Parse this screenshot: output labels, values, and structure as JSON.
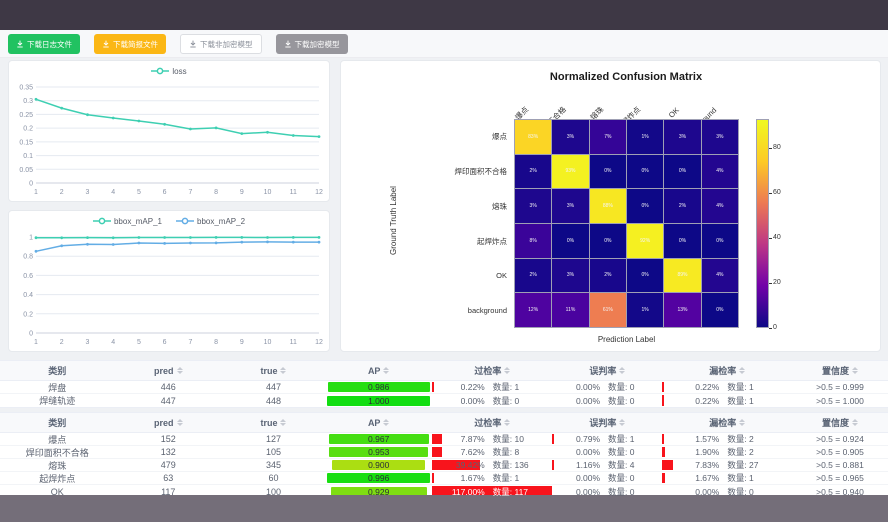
{
  "toolbar": {
    "buttons": [
      {
        "label": "下载日志文件",
        "style": "green"
      },
      {
        "label": "下载简报文件",
        "style": "orange"
      },
      {
        "label": "下载非加密模型",
        "style": "plain"
      },
      {
        "label": "下载加密模型",
        "style": "gray"
      }
    ]
  },
  "palette": {
    "teal": "#3ecfb2",
    "blue": "#63ade5",
    "red_bar": "#f8141c",
    "green_button": "#21c261",
    "orange_button": "#fbb715",
    "gray_button": "#97969c"
  },
  "chart_data": [
    {
      "type": "line",
      "x": [
        1,
        2,
        3,
        4,
        5,
        6,
        7,
        8,
        9,
        10,
        11,
        12
      ],
      "series": [
        {
          "name": "loss",
          "color": "#3ecfb2",
          "values": [
            0.305,
            0.273,
            0.249,
            0.237,
            0.226,
            0.214,
            0.197,
            0.201,
            0.18,
            0.185,
            0.173,
            0.169
          ]
        }
      ],
      "ylim": [
        0,
        0.35
      ],
      "yticks": [
        0,
        0.05,
        0.1,
        0.15,
        0.2,
        0.25,
        0.3,
        0.35
      ],
      "legend_position": "top",
      "grid": true
    },
    {
      "type": "line",
      "x": [
        1,
        2,
        3,
        4,
        5,
        6,
        7,
        8,
        9,
        10,
        11,
        12
      ],
      "series": [
        {
          "name": "bbox_mAP_1",
          "color": "#3ecfb2",
          "values": [
            0.993,
            0.992,
            0.994,
            0.992,
            0.995,
            0.995,
            0.995,
            0.996,
            0.996,
            0.995,
            0.996,
            0.996
          ]
        },
        {
          "name": "bbox_mAP_2",
          "color": "#63ade5",
          "values": [
            0.851,
            0.908,
            0.924,
            0.922,
            0.938,
            0.933,
            0.938,
            0.939,
            0.947,
            0.949,
            0.947,
            0.947
          ]
        }
      ],
      "ylim": [
        0,
        1
      ],
      "yticks": [
        0,
        0.2,
        0.4,
        0.6,
        0.8,
        1
      ],
      "legend_position": "top",
      "grid": true
    },
    {
      "type": "heatmap",
      "title": "Normalized Confusion Matrix",
      "xlabel": "Prediction Label",
      "ylabel": "Ground Truth Label",
      "labels": [
        "爆点",
        "焊印面积不合格",
        "熔珠",
        "起焊炸点",
        "OK",
        "background"
      ],
      "values_pct": [
        [
          83,
          3,
          7,
          1,
          3,
          3
        ],
        [
          2,
          93,
          0,
          0,
          0,
          4
        ],
        [
          3,
          3,
          88,
          0,
          2,
          4
        ],
        [
          8,
          0,
          0,
          92,
          0,
          0
        ],
        [
          2,
          3,
          2,
          0,
          89,
          4
        ],
        [
          12,
          11,
          61,
          1,
          13,
          0
        ]
      ],
      "colorbar_ticks": [
        0,
        20,
        40,
        60,
        80
      ],
      "vmax": 93,
      "colormap": "plasma"
    }
  ],
  "tables_meta": {
    "count_label": "数量:"
  },
  "tables": [
    {
      "headers": [
        "类别",
        "pred",
        "true",
        "AP",
        "过检率",
        "误判率",
        "漏检率",
        "置信度"
      ],
      "rows": [
        {
          "label": "焊盘",
          "pred": 446,
          "true": 447,
          "ap": 0.986,
          "over": {
            "pct": 0.22,
            "count": 1
          },
          "mis": {
            "pct": 0.0,
            "count": 0
          },
          "miss": {
            "pct": 0.22,
            "count": 1
          },
          "conf": ">0.5 = 0.999"
        },
        {
          "label": "焊缝轨迹",
          "pred": 447,
          "true": 448,
          "ap": 1.0,
          "over": {
            "pct": 0.0,
            "count": 0
          },
          "mis": {
            "pct": 0.0,
            "count": 0
          },
          "miss": {
            "pct": 0.22,
            "count": 1
          },
          "conf": ">0.5 = 1.000"
        }
      ]
    },
    {
      "headers": [
        "类别",
        "pred",
        "true",
        "AP",
        "过检率",
        "误判率",
        "漏检率",
        "置信度"
      ],
      "rows": [
        {
          "label": "爆点",
          "pred": 152,
          "true": 127,
          "ap": 0.967,
          "over": {
            "pct": 7.87,
            "count": 10
          },
          "mis": {
            "pct": 0.79,
            "count": 1
          },
          "miss": {
            "pct": 1.57,
            "count": 2
          },
          "conf": ">0.5 = 0.924"
        },
        {
          "label": "焊印面积不合格",
          "pred": 132,
          "true": 105,
          "ap": 0.953,
          "over": {
            "pct": 7.62,
            "count": 8
          },
          "mis": {
            "pct": 0.0,
            "count": 0
          },
          "miss": {
            "pct": 1.9,
            "count": 2
          },
          "conf": ">0.5 = 0.905"
        },
        {
          "label": "熔珠",
          "pred": 479,
          "true": 345,
          "ap": 0.9,
          "over": {
            "pct": 39.42,
            "count": 136
          },
          "mis": {
            "pct": 1.16,
            "count": 4
          },
          "miss": {
            "pct": 7.83,
            "count": 27
          },
          "conf": ">0.5 = 0.881"
        },
        {
          "label": "起焊炸点",
          "pred": 63,
          "true": 60,
          "ap": 0.996,
          "over": {
            "pct": 1.67,
            "count": 1
          },
          "mis": {
            "pct": 0.0,
            "count": 0
          },
          "miss": {
            "pct": 1.67,
            "count": 1
          },
          "conf": ">0.5 = 0.965"
        },
        {
          "label": "OK",
          "pred": 117,
          "true": 100,
          "ap": 0.929,
          "over": {
            "pct": 117.0,
            "count": 117
          },
          "mis": {
            "pct": 0.0,
            "count": 0
          },
          "miss": {
            "pct": 0.0,
            "count": 0
          },
          "conf": ">0.5 = 0.940"
        }
      ]
    }
  ]
}
